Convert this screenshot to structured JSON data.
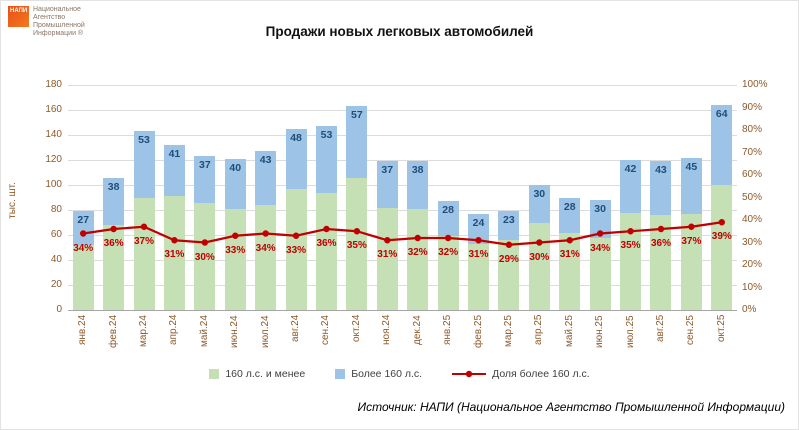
{
  "logo": {
    "badge": "НАПИ",
    "lines": [
      "Национальное",
      "Агентство",
      "Промышленной",
      "Информации ®"
    ]
  },
  "title": "Продажи новых легковых автомобилей",
  "source": "Источник: НАПИ (Национальное Агентство Промышленной Информации)",
  "chart_data": {
    "type": "bar",
    "stacked": true,
    "title": "Продажи новых легковых автомобилей",
    "ylabel": "тыс. шт.",
    "ylim": [
      0,
      180
    ],
    "yticks": [
      0,
      20,
      40,
      60,
      80,
      100,
      120,
      140,
      160,
      180
    ],
    "y2ticks": [
      "0%",
      "10%",
      "20%",
      "30%",
      "40%",
      "50%",
      "60%",
      "70%",
      "80%",
      "90%",
      "100%"
    ],
    "grid": true,
    "legend_position": "bottom",
    "categories": [
      "янв.24",
      "фев.24",
      "мар.24",
      "апр.24",
      "май.24",
      "июн.24",
      "июл.24",
      "авг.24",
      "сен.24",
      "окт.24",
      "ноя.24",
      "дек.24",
      "янв.25",
      "фев.25",
      "мар.25",
      "апр.25",
      "май.25",
      "июн.25",
      "июл.25",
      "авг.25",
      "сен.25",
      "окт.25"
    ],
    "series": [
      {
        "name": "160 л.с. и менее",
        "color": "#c5e0b4",
        "values": [
          52,
          68,
          90,
          91,
          86,
          81,
          84,
          97,
          94,
          106,
          82,
          81,
          59,
          53,
          56,
          70,
          62,
          58,
          78,
          76,
          77,
          100
        ]
      },
      {
        "name": "Более 160 л.с.",
        "color": "#9dc3e6",
        "values": [
          27,
          38,
          53,
          41,
          37,
          40,
          43,
          48,
          53,
          57,
          37,
          38,
          28,
          24,
          23,
          30,
          28,
          30,
          42,
          43,
          45,
          64
        ]
      }
    ],
    "line": {
      "name": "Доля более 160 л.с.",
      "color": "#c00000",
      "axis": "right",
      "values_pct": [
        34,
        36,
        37,
        31,
        30,
        33,
        34,
        33,
        36,
        35,
        31,
        32,
        32,
        31,
        29,
        30,
        31,
        34,
        35,
        36,
        37,
        39
      ]
    }
  }
}
